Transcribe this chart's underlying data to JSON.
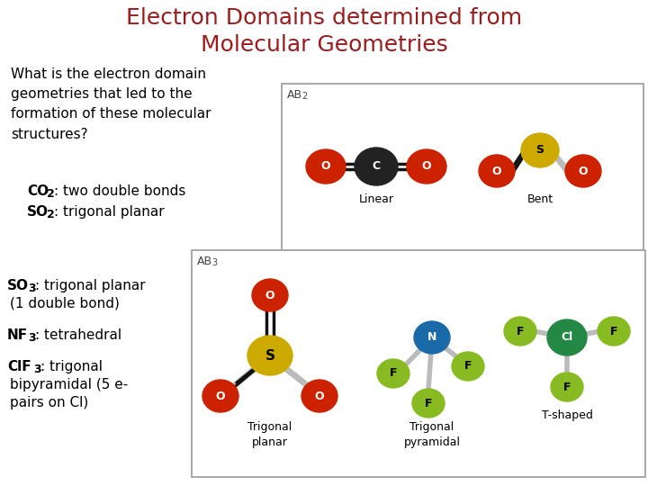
{
  "title_line1": "Electron Domains determined from",
  "title_line2": "Molecular Geometries",
  "title_color": "#9b1c1c",
  "title_fontsize": 18,
  "bg_color": "#ffffff",
  "question_text": "What is the electron domain\ngeometries that led to the\nformation of these molecular\nstructures?",
  "q_fontsize": 11,
  "bullet1_bold": "CO",
  "bullet1_sub": "2",
  "bullet1_rest": ": two double bonds",
  "bullet2_bold": "SO",
  "bullet2_sub": "2",
  "bullet2_rest": ": trigonal planar",
  "bottom_bullet1_bold": "SO",
  "bottom_bullet1_sub": "3",
  "bottom_bullet1_rest": ": trigonal planar\n(1 double bond)",
  "bottom_bullet2_bold": "NF",
  "bottom_bullet2_sub": "3",
  "bottom_bullet2_rest": ": tetrahedral",
  "bottom_bullet3_bold": "ClF",
  "bottom_bullet3_sub": "3",
  "bottom_bullet3_rest": ": trigonal\nbipyramidal (5 e-\npairs on Cl)",
  "ab2_label": "AB",
  "ab2_sub": "2",
  "ab3_label": "AB",
  "ab3_sub": "3",
  "linear_label": "Linear",
  "bent_label": "Bent",
  "trigonal_planar_label": "Trigonal\nplanar",
  "trigonal_pyramidal_label": "Trigonal\npyramidal",
  "t_shaped_label": "T-shaped",
  "color_O": "#cc2200",
  "color_C": "#222222",
  "color_S": "#ccaa00",
  "color_N": "#1a6aaa",
  "color_Cl": "#228844",
  "color_F": "#88bb22",
  "bond_color": "#bbbbbb",
  "bond_black": "#111111",
  "box_edge_color": "#999999",
  "text_fontsize": 11,
  "label_fontsize": 10
}
